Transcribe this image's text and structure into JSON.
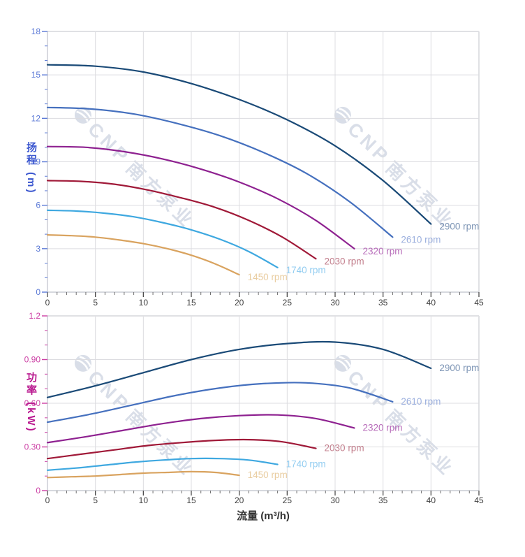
{
  "watermark": {
    "brand": "CNP",
    "brand_cn": "南方泵业",
    "color": "#d9dee8"
  },
  "chart_data": [
    {
      "id": "head",
      "type": "line",
      "title": "",
      "xlabel": "",
      "ylabel": "扬程 (m)",
      "xlim": [
        0,
        45
      ],
      "ylim": [
        0,
        18
      ],
      "grid": true,
      "legend_position": "end-of-line",
      "x_ticks": [
        0,
        5,
        10,
        15,
        20,
        25,
        30,
        35,
        40,
        45
      ],
      "x_tick_labels": [
        "0",
        "5",
        "10",
        "15",
        "20",
        "25",
        "30",
        "35",
        "40",
        "45"
      ],
      "y_ticks": [
        0,
        3,
        6,
        9,
        12,
        15,
        18
      ],
      "y_tick_labels": [
        "0",
        "3",
        "6",
        "9",
        "12",
        "15",
        "18"
      ],
      "x_minor_step": 1,
      "y_minor_step": 1,
      "axis_color": "#5b79d6",
      "x_tick_label_color": "#3f3f3f",
      "series": [
        {
          "name": "2900 rpm",
          "color": "#1a4a77",
          "label_color": "#7d95b5",
          "points": [
            [
              0,
              15.7
            ],
            [
              5,
              15.6
            ],
            [
              10,
              15.2
            ],
            [
              15,
              14.4
            ],
            [
              20,
              13.3
            ],
            [
              25,
              11.9
            ],
            [
              30,
              10.1
            ],
            [
              35,
              7.7
            ],
            [
              40,
              4.7
            ]
          ]
        },
        {
          "name": "2610 rpm",
          "color": "#4570be",
          "label_color": "#9cb0de",
          "points": [
            [
              0,
              12.75
            ],
            [
              4.5,
              12.65
            ],
            [
              9,
              12.3
            ],
            [
              13.5,
              11.65
            ],
            [
              18,
              10.8
            ],
            [
              22.5,
              9.65
            ],
            [
              27,
              8.2
            ],
            [
              31.5,
              6.25
            ],
            [
              36,
              3.8
            ]
          ]
        },
        {
          "name": "2320 rpm",
          "color": "#8e2190",
          "label_color": "#b76bb9",
          "points": [
            [
              0,
              10.05
            ],
            [
              4,
              10.0
            ],
            [
              8,
              9.7
            ],
            [
              12,
              9.2
            ],
            [
              16,
              8.5
            ],
            [
              20,
              7.6
            ],
            [
              24,
              6.45
            ],
            [
              28,
              4.95
            ],
            [
              32,
              3.0
            ]
          ]
        },
        {
          "name": "2030 rpm",
          "color": "#a01938",
          "label_color": "#c3808e",
          "points": [
            [
              0,
              7.7
            ],
            [
              3.5,
              7.65
            ],
            [
              7,
              7.45
            ],
            [
              10.5,
              7.05
            ],
            [
              14,
              6.5
            ],
            [
              17.5,
              5.85
            ],
            [
              21,
              4.95
            ],
            [
              24.5,
              3.8
            ],
            [
              28,
              2.3
            ]
          ]
        },
        {
          "name": "1740 rpm",
          "color": "#3ea8e0",
          "label_color": "#93cdf1",
          "points": [
            [
              0,
              5.65
            ],
            [
              3,
              5.6
            ],
            [
              6,
              5.45
            ],
            [
              9,
              5.2
            ],
            [
              12,
              4.8
            ],
            [
              15,
              4.3
            ],
            [
              18,
              3.65
            ],
            [
              21,
              2.8
            ],
            [
              24,
              1.7
            ]
          ]
        },
        {
          "name": "1450 rpm",
          "color": "#d9a35f",
          "label_color": "#e9cda1",
          "points": [
            [
              0,
              3.95
            ],
            [
              2.5,
              3.9
            ],
            [
              5,
              3.8
            ],
            [
              7.5,
              3.6
            ],
            [
              10,
              3.35
            ],
            [
              12.5,
              3.0
            ],
            [
              15,
              2.55
            ],
            [
              17.5,
              1.95
            ],
            [
              20,
              1.2
            ]
          ]
        }
      ]
    },
    {
      "id": "power",
      "type": "line",
      "title": "",
      "xlabel": "流量 (m³/h)",
      "ylabel": "功率 (kW)",
      "xlim": [
        0,
        45
      ],
      "ylim": [
        0,
        1.2
      ],
      "grid": true,
      "legend_position": "end-of-line",
      "x_ticks": [
        0,
        5,
        10,
        15,
        20,
        25,
        30,
        35,
        40,
        45
      ],
      "x_tick_labels": [
        "0",
        "5",
        "10",
        "15",
        "20",
        "25",
        "30",
        "35",
        "40",
        "45"
      ],
      "y_ticks": [
        0,
        0.3,
        0.6,
        0.9,
        1.2
      ],
      "y_tick_labels": [
        "0",
        "0.30",
        "0.60",
        "0.90",
        "1.2"
      ],
      "x_minor_step": 1,
      "y_minor_step": 0.1,
      "axis_color": "#cc3fa4",
      "x_tick_label_color": "#3f3f3f",
      "series": [
        {
          "name": "2900 rpm",
          "color": "#1a4a77",
          "label_color": "#7d95b5",
          "points": [
            [
              0,
              0.64
            ],
            [
              5,
              0.72
            ],
            [
              10,
              0.81
            ],
            [
              15,
              0.9
            ],
            [
              20,
              0.97
            ],
            [
              25,
              1.01
            ],
            [
              30,
              1.02
            ],
            [
              35,
              0.97
            ],
            [
              40,
              0.84
            ]
          ]
        },
        {
          "name": "2610 rpm",
          "color": "#4570be",
          "label_color": "#9cb0de",
          "points": [
            [
              0,
              0.47
            ],
            [
              4.5,
              0.525
            ],
            [
              9,
              0.59
            ],
            [
              13.5,
              0.655
            ],
            [
              18,
              0.705
            ],
            [
              22.5,
              0.735
            ],
            [
              27,
              0.74
            ],
            [
              31.5,
              0.705
            ],
            [
              36,
              0.61
            ]
          ]
        },
        {
          "name": "2320 rpm",
          "color": "#8e2190",
          "label_color": "#b76bb9",
          "points": [
            [
              0,
              0.33
            ],
            [
              4,
              0.37
            ],
            [
              8,
              0.415
            ],
            [
              12,
              0.46
            ],
            [
              16,
              0.495
            ],
            [
              20,
              0.515
            ],
            [
              24,
              0.52
            ],
            [
              28,
              0.495
            ],
            [
              32,
              0.43
            ]
          ]
        },
        {
          "name": "2030 rpm",
          "color": "#a01938",
          "label_color": "#c3808e",
          "points": [
            [
              0,
              0.22
            ],
            [
              3.5,
              0.25
            ],
            [
              7,
              0.28
            ],
            [
              10.5,
              0.31
            ],
            [
              14,
              0.33
            ],
            [
              17.5,
              0.345
            ],
            [
              21,
              0.35
            ],
            [
              24.5,
              0.335
            ],
            [
              28,
              0.29
            ]
          ]
        },
        {
          "name": "1740 rpm",
          "color": "#3ea8e0",
          "label_color": "#93cdf1",
          "points": [
            [
              0,
              0.14
            ],
            [
              3,
              0.155
            ],
            [
              6,
              0.175
            ],
            [
              9,
              0.195
            ],
            [
              12,
              0.21
            ],
            [
              15,
              0.22
            ],
            [
              18,
              0.22
            ],
            [
              21,
              0.21
            ],
            [
              24,
              0.18
            ]
          ]
        },
        {
          "name": "1450 rpm",
          "color": "#d9a35f",
          "label_color": "#e9cda1",
          "points": [
            [
              0,
              0.09
            ],
            [
              2.5,
              0.095
            ],
            [
              5,
              0.1
            ],
            [
              7.5,
              0.11
            ],
            [
              10,
              0.12
            ],
            [
              12.5,
              0.125
            ],
            [
              15,
              0.13
            ],
            [
              17.5,
              0.125
            ],
            [
              20,
              0.105
            ]
          ]
        }
      ]
    }
  ]
}
